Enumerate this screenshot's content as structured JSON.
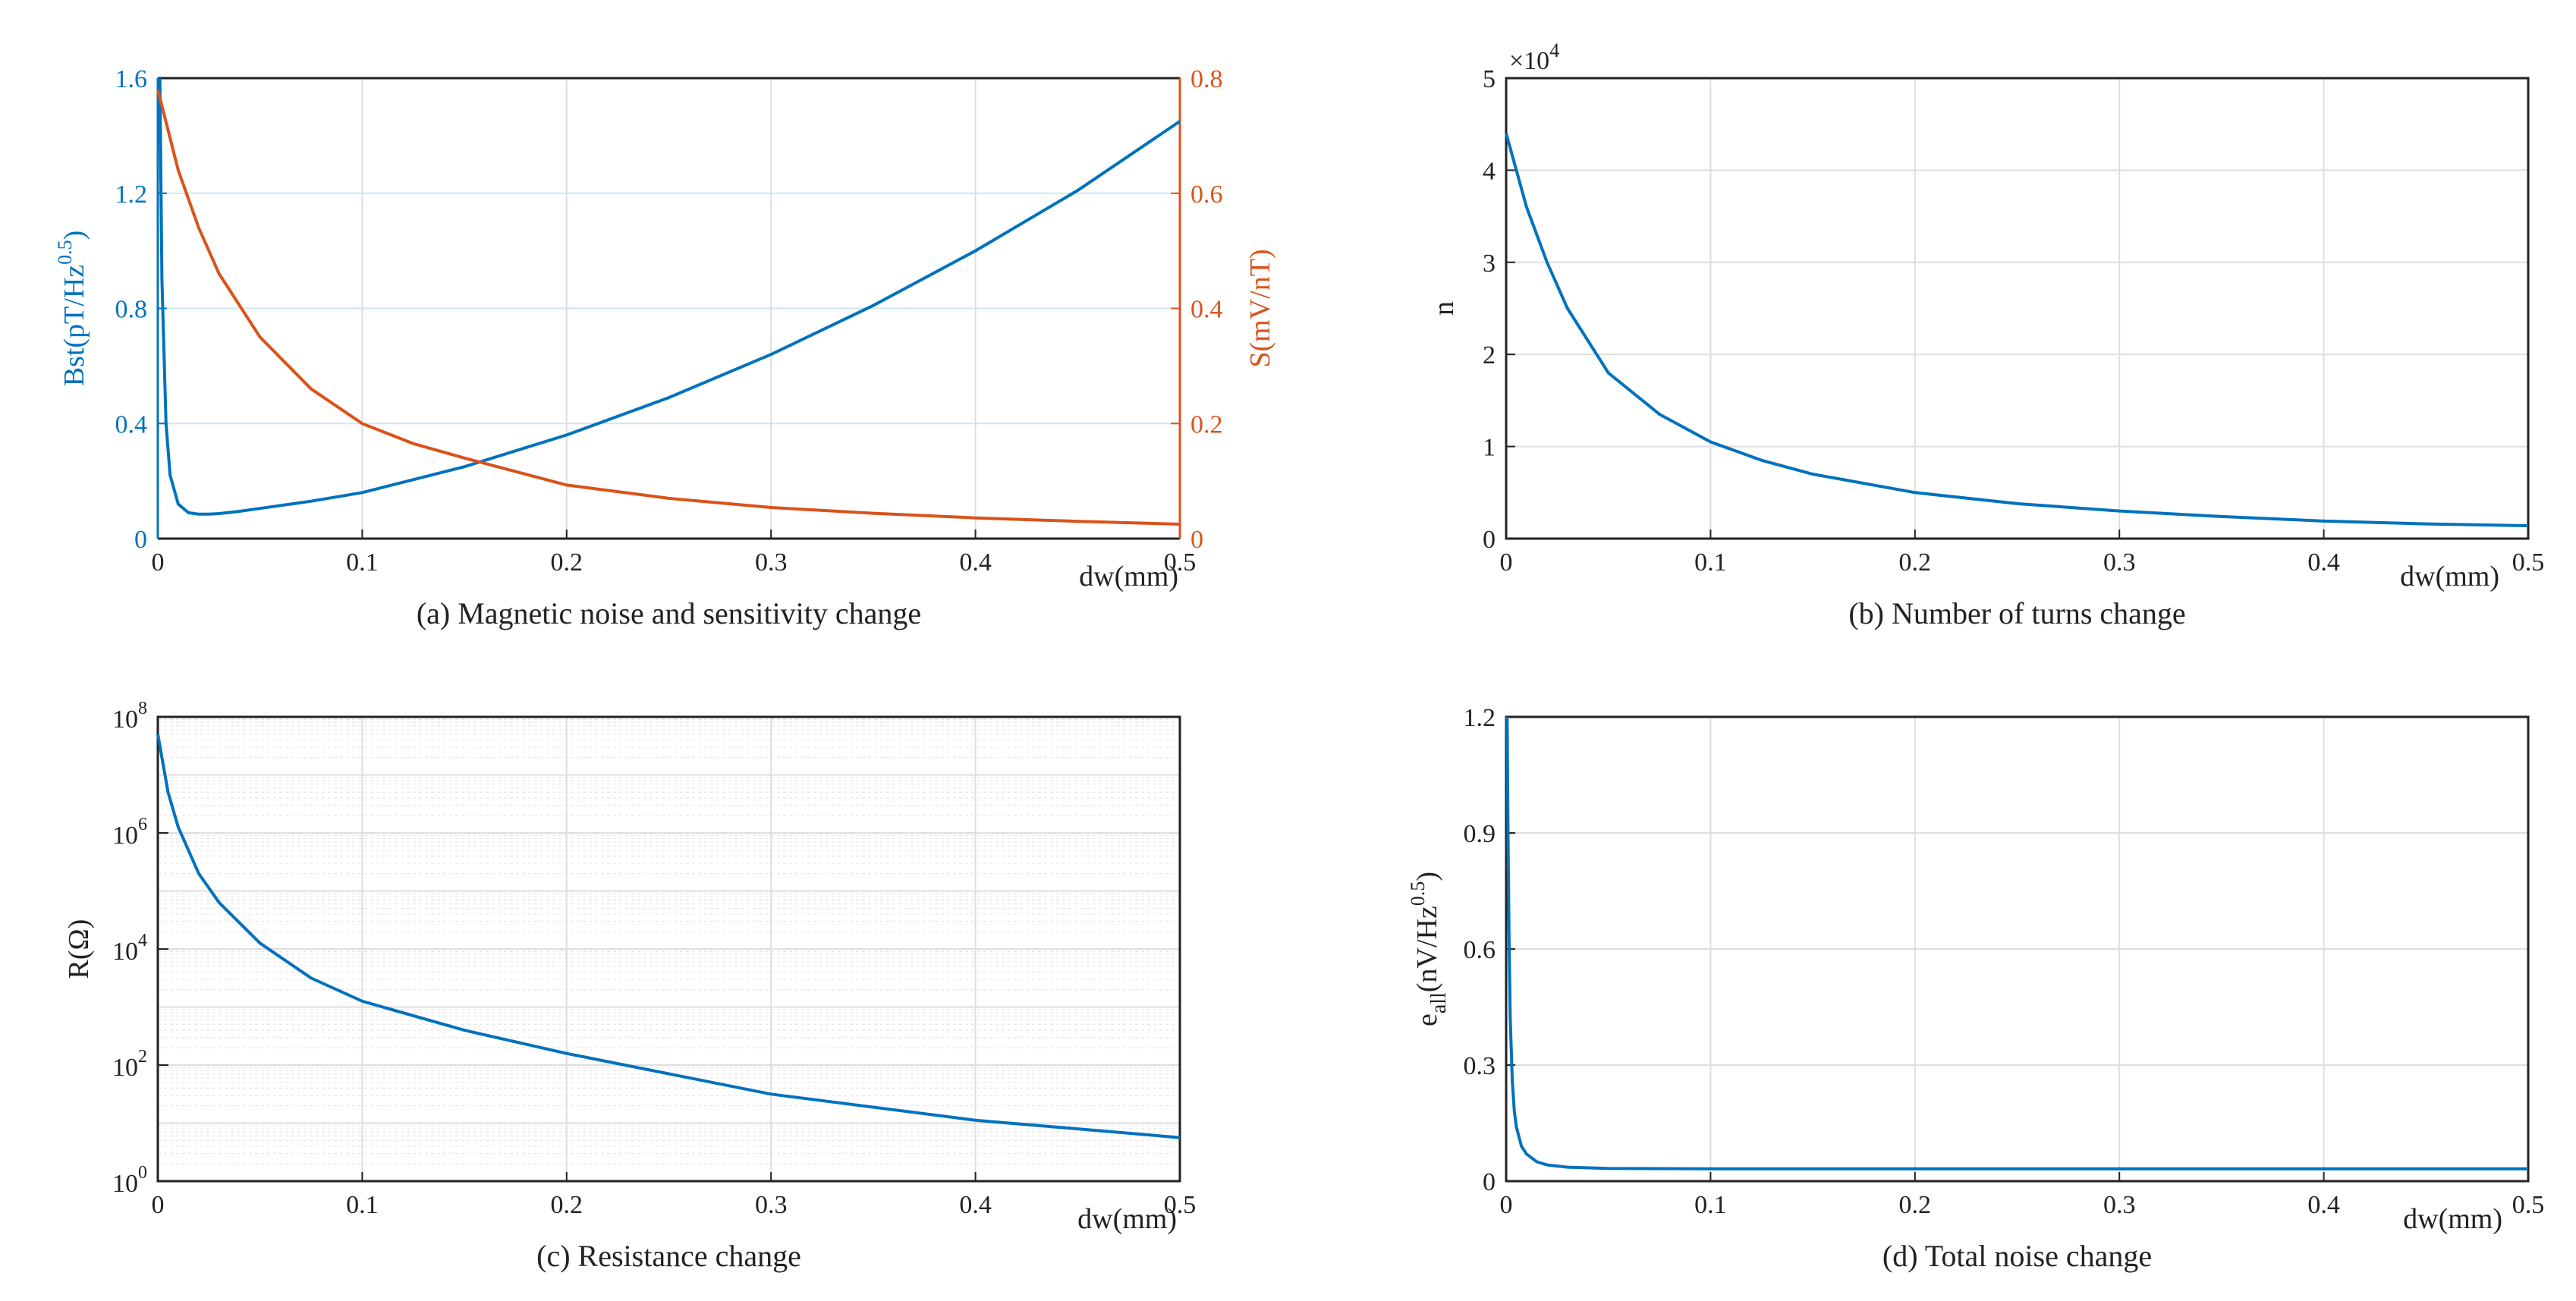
{
  "colors": {
    "blue": "#0072BD",
    "orange": "#D95319",
    "axis": "#222222"
  },
  "chart_data": [
    {
      "id": "a",
      "type": "line",
      "caption": "(a) Magnetic noise and sensitivity change",
      "xlabel": "dw(mm)",
      "xlim": [
        0,
        0.5
      ],
      "xticks": [
        0,
        0.1,
        0.2,
        0.3,
        0.4,
        0.5
      ],
      "xtick_labels": [
        "0",
        "0.1",
        "0.2",
        "0.3",
        "0.4",
        "0.5"
      ],
      "ylabel_left": "Bst(pT/Hz^0.5)",
      "ylabel_left_parts": [
        "Bst(pT/Hz",
        "0.5",
        ")"
      ],
      "ylim_left": [
        0,
        1.6
      ],
      "yticks_left": [
        0,
        0.4,
        0.8,
        1.2,
        1.6
      ],
      "ytick_labels_left": [
        "0",
        "0.4",
        "0.8",
        "1.2",
        "1.6"
      ],
      "ylabel_right": "S(mV/nT)",
      "ylim_right": [
        0,
        0.8
      ],
      "yticks_right": [
        0,
        0.2,
        0.4,
        0.6,
        0.8
      ],
      "ytick_labels_right": [
        "0",
        "0.2",
        "0.4",
        "0.6",
        "0.8"
      ],
      "series": [
        {
          "name": "Bst",
          "axis": "left",
          "color": "#0072BD",
          "x": [
            0.001,
            0.002,
            0.004,
            0.006,
            0.01,
            0.015,
            0.02,
            0.025,
            0.03,
            0.04,
            0.05,
            0.075,
            0.1,
            0.15,
            0.2,
            0.25,
            0.3,
            0.35,
            0.4,
            0.45,
            0.5
          ],
          "y": [
            1.6,
            0.9,
            0.4,
            0.22,
            0.12,
            0.09,
            0.085,
            0.085,
            0.087,
            0.095,
            0.105,
            0.13,
            0.16,
            0.25,
            0.36,
            0.49,
            0.64,
            0.81,
            1.0,
            1.21,
            1.45
          ]
        },
        {
          "name": "S",
          "axis": "right",
          "color": "#D95319",
          "x": [
            0,
            0.01,
            0.02,
            0.03,
            0.05,
            0.075,
            0.1,
            0.125,
            0.15,
            0.2,
            0.25,
            0.3,
            0.35,
            0.4,
            0.45,
            0.5
          ],
          "y": [
            0.78,
            0.64,
            0.54,
            0.46,
            0.35,
            0.26,
            0.2,
            0.165,
            0.14,
            0.093,
            0.07,
            0.054,
            0.044,
            0.036,
            0.03,
            0.025
          ]
        }
      ]
    },
    {
      "id": "b",
      "type": "line",
      "caption": "(b) Number of turns change",
      "xlabel": "dw(mm)",
      "xlim": [
        0,
        0.5
      ],
      "xticks": [
        0,
        0.1,
        0.2,
        0.3,
        0.4,
        0.5
      ],
      "xtick_labels": [
        "0",
        "0.1",
        "0.2",
        "0.3",
        "0.4",
        "0.5"
      ],
      "ylabel": "n",
      "ylim": [
        0,
        5
      ],
      "yticks": [
        0,
        1,
        2,
        3,
        4,
        5
      ],
      "ytick_labels": [
        "0",
        "1",
        "2",
        "3",
        "4",
        "5"
      ],
      "multiplier_parts": [
        "×10",
        "4"
      ],
      "series": [
        {
          "name": "n",
          "color": "#0072BD",
          "x": [
            0,
            0.01,
            0.02,
            0.03,
            0.05,
            0.075,
            0.1,
            0.125,
            0.15,
            0.2,
            0.25,
            0.3,
            0.35,
            0.4,
            0.45,
            0.5
          ],
          "y": [
            4.4,
            3.6,
            3.0,
            2.5,
            1.8,
            1.35,
            1.05,
            0.85,
            0.7,
            0.5,
            0.38,
            0.3,
            0.24,
            0.19,
            0.16,
            0.14
          ]
        }
      ]
    },
    {
      "id": "c",
      "type": "line",
      "yscale": "log",
      "caption": "(c) Resistance change",
      "xlabel": "dw(mm)",
      "xlim": [
        0,
        0.5
      ],
      "xticks": [
        0,
        0.1,
        0.2,
        0.3,
        0.4,
        0.5
      ],
      "xtick_labels": [
        "0",
        "0.1",
        "0.2",
        "0.3",
        "0.4",
        "0.5"
      ],
      "ylabel": "R(Ω)",
      "ylim_exp": [
        0,
        8
      ],
      "ytick_exps": [
        0,
        2,
        4,
        6,
        8
      ],
      "ytick_bases": [
        "10",
        "10",
        "10",
        "10",
        "10"
      ],
      "ytick_exp_labels": [
        "0",
        "2",
        "4",
        "6",
        "8"
      ],
      "series": [
        {
          "name": "R",
          "color": "#0072BD",
          "x": [
            0,
            0.002,
            0.005,
            0.01,
            0.02,
            0.03,
            0.05,
            0.075,
            0.1,
            0.15,
            0.2,
            0.3,
            0.4,
            0.5
          ],
          "log10_y": [
            7.7,
            7.3,
            6.7,
            6.1,
            5.3,
            4.8,
            4.1,
            3.5,
            3.1,
            2.6,
            2.2,
            1.5,
            1.05,
            0.75
          ]
        }
      ]
    },
    {
      "id": "d",
      "type": "line",
      "caption": "(d) Total noise change",
      "xlabel": "dw(mm)",
      "xlim": [
        0,
        0.5
      ],
      "xticks": [
        0,
        0.1,
        0.2,
        0.3,
        0.4,
        0.5
      ],
      "xtick_labels": [
        "0",
        "0.1",
        "0.2",
        "0.3",
        "0.4",
        "0.5"
      ],
      "ylabel": "e_all(nV/Hz^0.5)",
      "ylabel_parts": [
        "e",
        "all",
        "(nV/Hz",
        "0.5",
        ")"
      ],
      "ylim": [
        0,
        1.2
      ],
      "yticks": [
        0,
        0.3,
        0.6,
        0.9,
        1.2
      ],
      "ytick_labels": [
        "0",
        "0.3",
        "0.6",
        "0.9",
        "1.2"
      ],
      "series": [
        {
          "name": "e_all",
          "color": "#0072BD",
          "x": [
            0.0005,
            0.001,
            0.0015,
            0.002,
            0.003,
            0.004,
            0.005,
            0.0075,
            0.01,
            0.015,
            0.02,
            0.03,
            0.05,
            0.1,
            0.2,
            0.3,
            0.4,
            0.5
          ],
          "y": [
            1.2,
            0.85,
            0.6,
            0.42,
            0.26,
            0.18,
            0.14,
            0.09,
            0.07,
            0.05,
            0.042,
            0.036,
            0.033,
            0.032,
            0.032,
            0.032,
            0.032,
            0.032
          ]
        }
      ]
    }
  ]
}
